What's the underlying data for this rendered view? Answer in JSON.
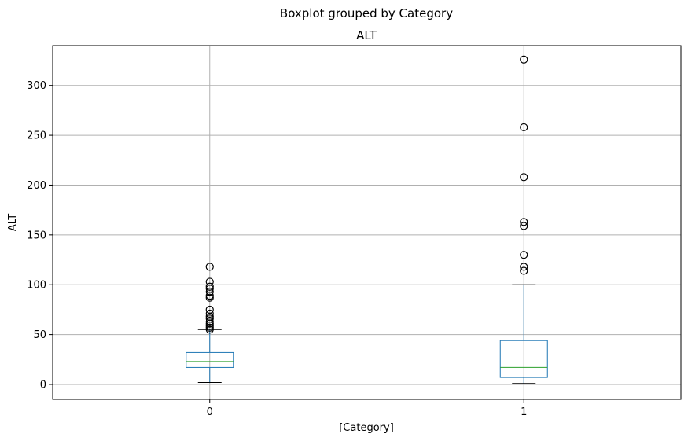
{
  "chart_data": {
    "type": "boxplot",
    "suptitle": "Boxplot grouped by Category",
    "title": "ALT",
    "xlabel": "[Category]",
    "ylabel": "ALT",
    "ylim": [
      -15,
      340
    ],
    "yticks": [
      0,
      50,
      100,
      150,
      200,
      250,
      300
    ],
    "grid": true,
    "colors": {
      "box": "#1f77b4",
      "median": "#2ca02c",
      "whisker": "#1f77b4",
      "cap": "#000000",
      "flier": "#000000",
      "grid": "#b0b0b0"
    },
    "groups": [
      {
        "label": "0",
        "whisker_low": 2,
        "q1": 17,
        "median": 23,
        "q3": 32,
        "whisker_high": 55,
        "outliers": [
          55,
          57,
          59,
          61,
          63,
          66,
          68,
          71,
          75,
          87,
          89,
          93,
          96,
          98,
          103,
          118
        ]
      },
      {
        "label": "1",
        "whisker_low": 1,
        "q1": 7,
        "median": 17,
        "q3": 44,
        "whisker_high": 100,
        "outliers": [
          114,
          118,
          130,
          159,
          163,
          208,
          258,
          326
        ]
      }
    ]
  }
}
